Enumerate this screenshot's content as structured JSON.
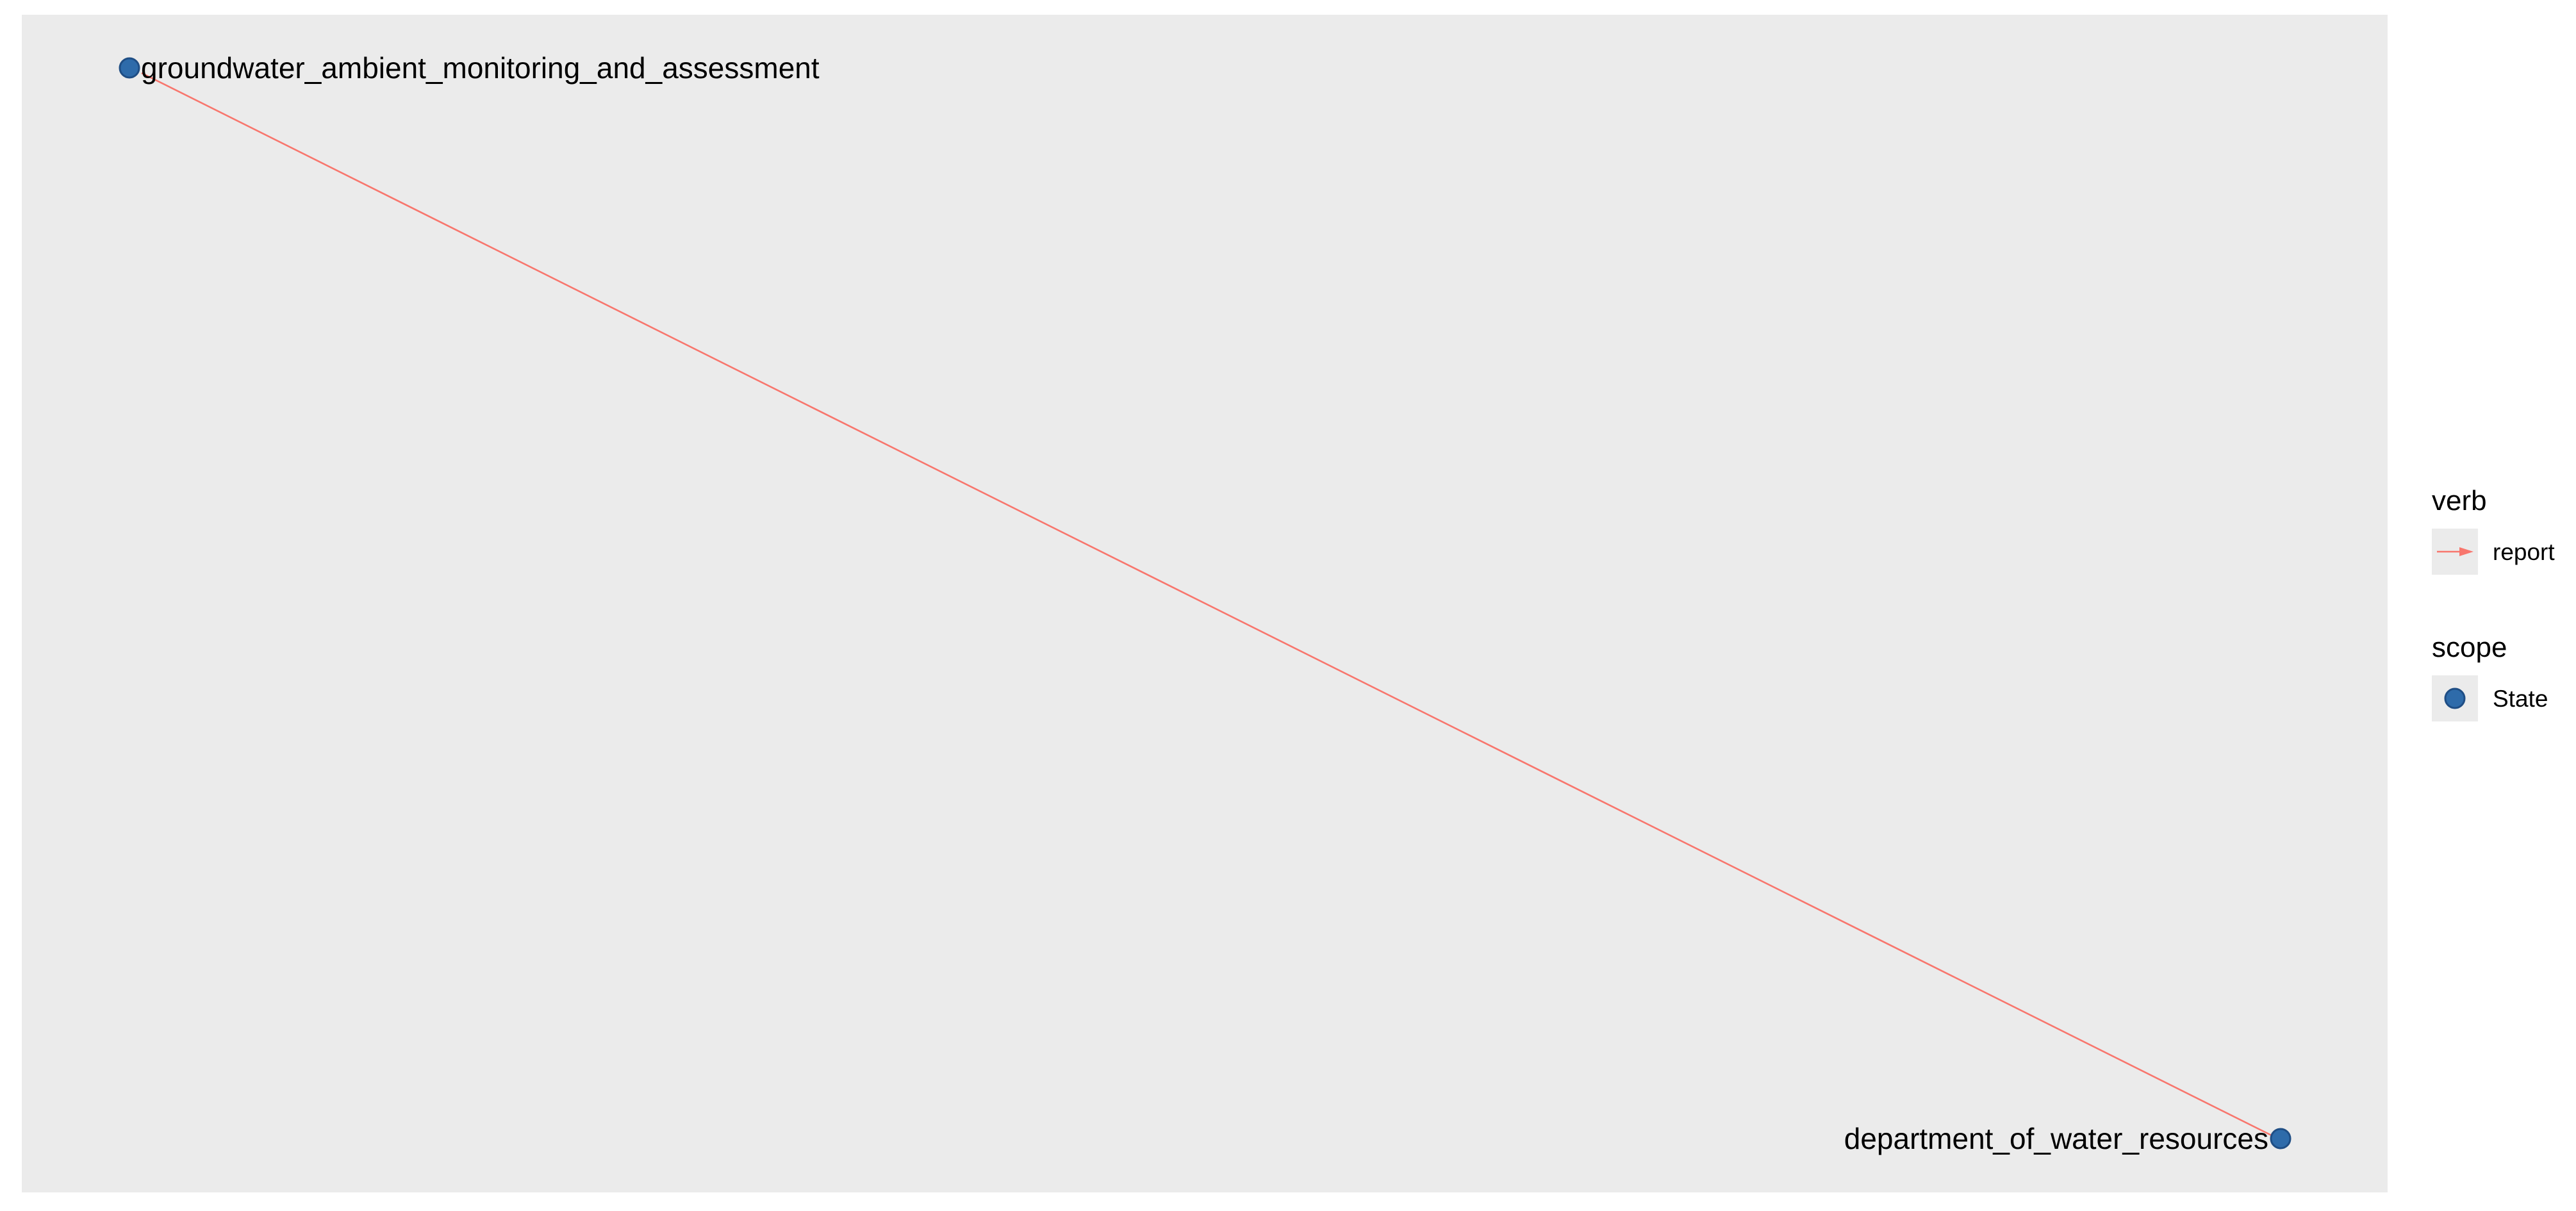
{
  "diagram": {
    "type": "network-graph",
    "nodes": [
      {
        "id": "gama",
        "label": "groundwater_ambient_monitoring_and_assessment",
        "scope": "State"
      },
      {
        "id": "dwr",
        "label": "department_of_water_resources",
        "scope": "State"
      }
    ],
    "edges": [
      {
        "from": "gama",
        "to": "dwr",
        "verb": "report"
      }
    ]
  },
  "legend": {
    "verb": {
      "title": "verb",
      "items": [
        {
          "label": "report"
        }
      ]
    },
    "scope": {
      "title": "scope",
      "items": [
        {
          "label": "State"
        }
      ]
    }
  },
  "colors": {
    "panel_background": "#EBEBEB",
    "edge_report": "#F8766D",
    "node_state_fill": "#2E6BAA",
    "node_state_stroke": "#1F4E85",
    "legend_key_background": "#EBEBEB"
  }
}
